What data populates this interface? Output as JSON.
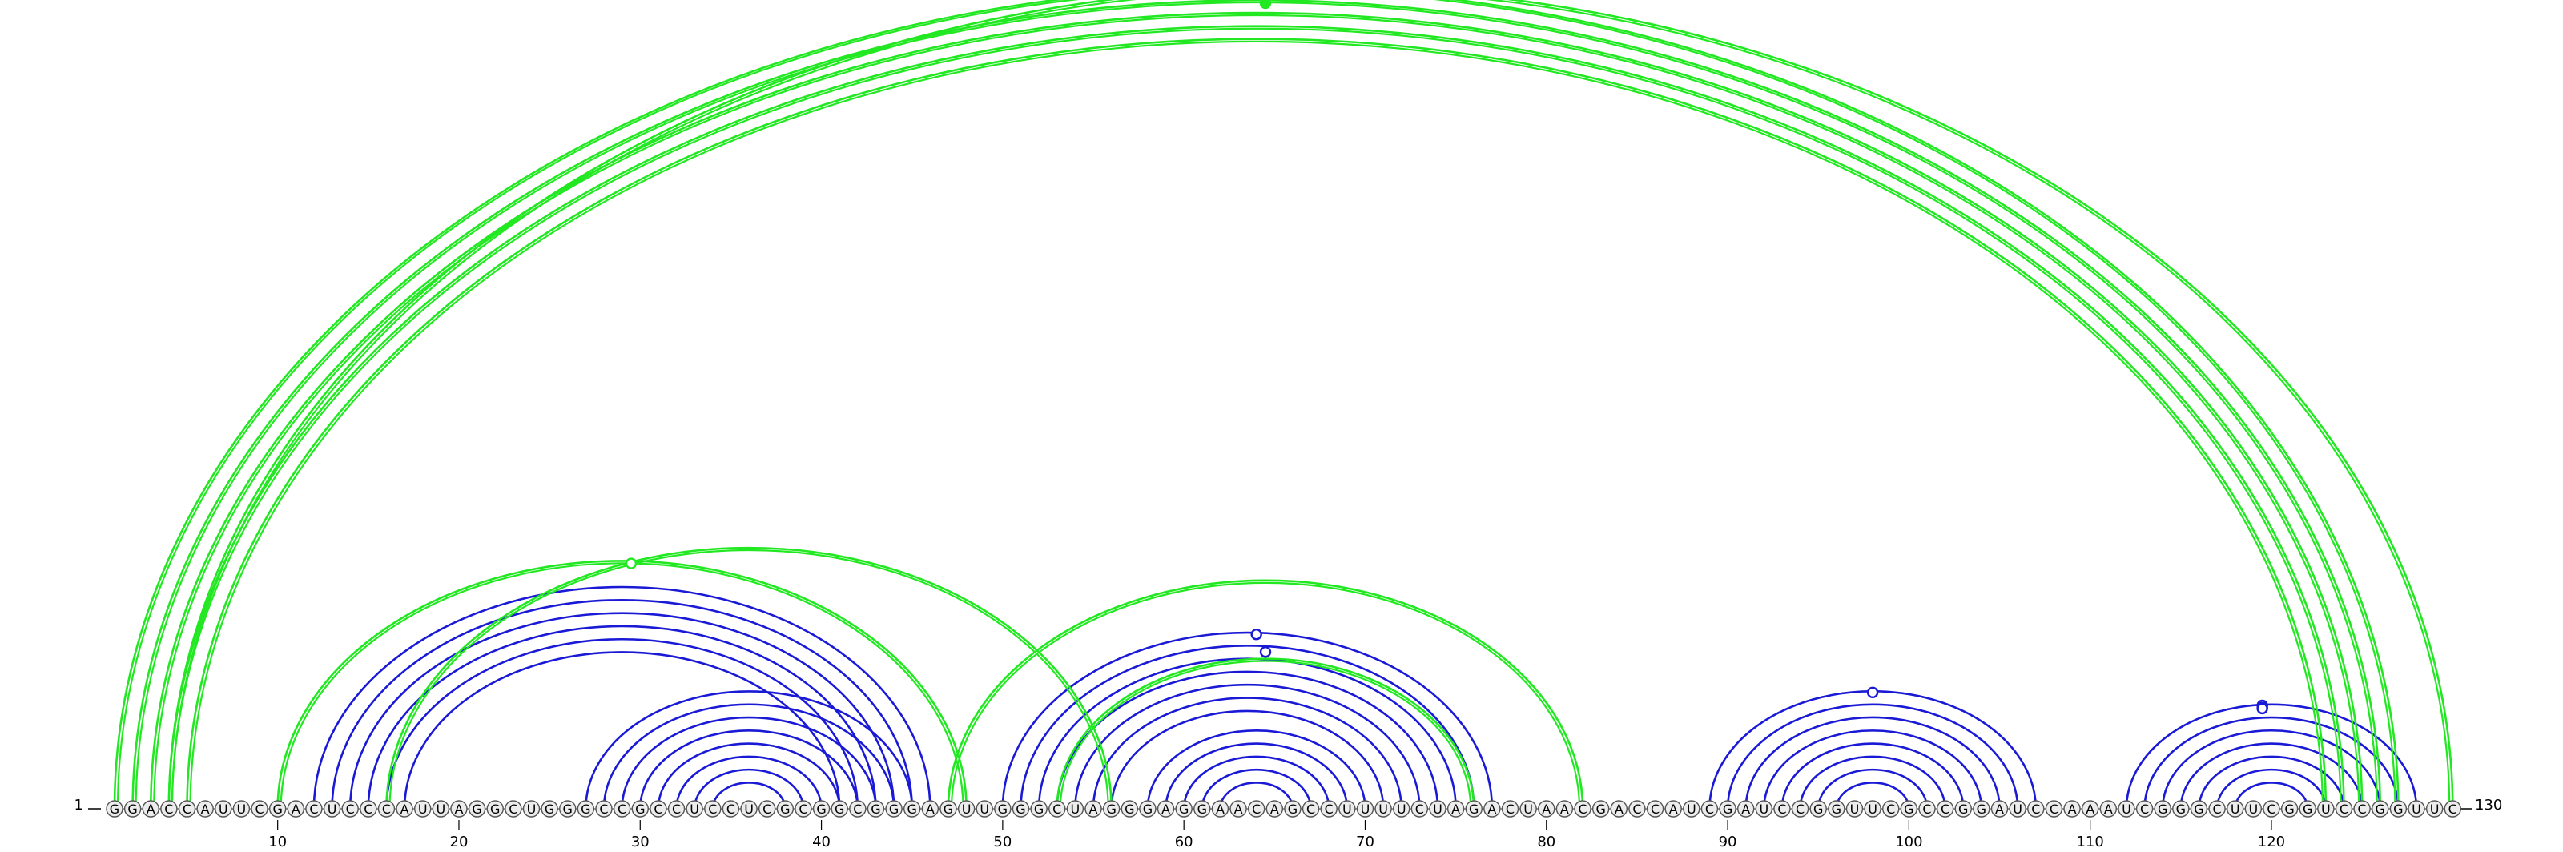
{
  "sequence": "GGACCAUUCGACUCCCAUUAGGCUGGGCCGCCUCCUCGCGGCGGGAGUUGGGCUAGGGAGGAACAGCCUUUUCUAGACUAACGACCAUCGAUCCGGUUCGCCGGAUCCAAAUCGGGCUUCGGUCCGGUUC",
  "start_label": "1",
  "end_label": "130",
  "ticks": [
    10,
    20,
    30,
    40,
    50,
    60,
    70,
    80,
    90,
    100,
    110,
    120
  ],
  "colors": {
    "blue_arc": "#1a1ad6",
    "green_arc": "#22e822",
    "nucleotide_stroke": "#555555",
    "text": "#000000"
  },
  "blue_stems": [
    {
      "i": 12,
      "j": 46,
      "n": 6
    },
    {
      "i": 27,
      "j": 45,
      "n": 8
    },
    {
      "i": 50,
      "j": 77,
      "n": 7
    },
    {
      "i": 58,
      "j": 70,
      "n": 5
    },
    {
      "i": 89,
      "j": 107,
      "n": 8
    },
    {
      "i": 112,
      "j": 128,
      "n": 7
    }
  ],
  "green_stems": [
    {
      "i": 1,
      "j": 127,
      "n": 5
    },
    {
      "i": 4,
      "j": 130,
      "n": 1
    },
    {
      "i": 10,
      "j": 48,
      "n": 1
    },
    {
      "i": 16,
      "j": 56,
      "n": 1
    },
    {
      "i": 47,
      "j": 82,
      "n": 1
    },
    {
      "i": 53,
      "j": 76,
      "n": 1
    }
  ],
  "markers": [
    {
      "pos": 65.5,
      "level": 0.99,
      "color": "green",
      "filled": false
    },
    {
      "pos": 29.5,
      "level": 0.99,
      "color": "green",
      "filled": false
    },
    {
      "pos": 64.5,
      "level": 0.89,
      "color": "blue",
      "filled": false
    },
    {
      "pos": 64.5,
      "level": 0.98,
      "color": "green",
      "filled": true
    },
    {
      "pos": 64.0,
      "level": 0.99,
      "color": "blue",
      "filled": false
    },
    {
      "pos": 98.0,
      "level": 0.99,
      "color": "blue",
      "filled": false
    },
    {
      "pos": 119.5,
      "level": 0.99,
      "color": "blue",
      "filled": false
    },
    {
      "pos": 119.5,
      "level": 0.97,
      "color": "blue",
      "filled": false
    },
    {
      "pos": 119.5,
      "level": 0.96,
      "color": "blue",
      "filled": false
    }
  ]
}
